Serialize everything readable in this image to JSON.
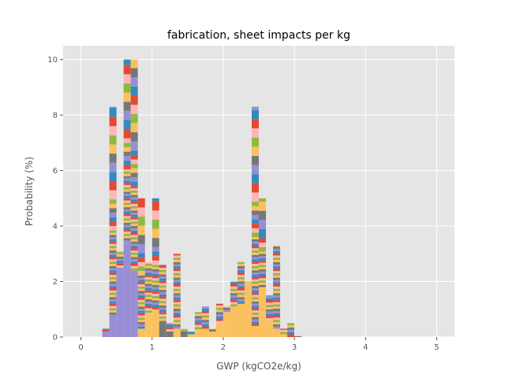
{
  "chart_data": {
    "type": "bar",
    "title": "fabrication, sheet impacts per kg",
    "xlabel": "GWP (kgCO2e/kg)",
    "ylabel": "Probability (%)",
    "xlim": [
      -0.25,
      5.25
    ],
    "ylim": [
      0,
      10.5
    ],
    "xticks": [
      0,
      1,
      2,
      3,
      4,
      5
    ],
    "yticks": [
      0,
      2,
      4,
      6,
      8,
      10
    ],
    "grid": true,
    "background": "#e5e5e5",
    "grid_color": "#ffffff",
    "palette": [
      "#e24a33",
      "#348abd",
      "#988ed5",
      "#777777",
      "#fbc15e",
      "#8eba42",
      "#ffb5b8"
    ],
    "bin_width": 0.1,
    "bins": [
      {
        "x0": 0.3,
        "total": 0.3,
        "base": 0.2,
        "base_color": "#988ed5"
      },
      {
        "x0": 0.4,
        "total": 8.3,
        "base": 0.8,
        "base_color": "#988ed5"
      },
      {
        "x0": 0.5,
        "total": 3.1,
        "base": 2.5,
        "base_color": "#988ed5"
      },
      {
        "x0": 0.6,
        "total": 10.0,
        "base": 3.4,
        "base_color": "#988ed5"
      },
      {
        "x0": 0.7,
        "total": 10.0,
        "base": 2.4,
        "base_color": "#988ed5"
      },
      {
        "x0": 0.8,
        "total": 5.0,
        "base": 0.3,
        "base_color": "#fbc15e"
      },
      {
        "x0": 0.9,
        "total": 2.7,
        "base": 0.8,
        "base_color": "#fbc15e"
      },
      {
        "x0": 1.0,
        "total": 5.0,
        "base": 1.0,
        "base_color": "#fbc15e"
      },
      {
        "x0": 1.1,
        "total": 2.6,
        "base": 0.5,
        "base_color": "#777777"
      },
      {
        "x0": 1.2,
        "total": 0.5,
        "base": 0.2,
        "base_color": "#777777"
      },
      {
        "x0": 1.3,
        "total": 3.0,
        "base": 0.3,
        "base_color": "#fbc15e"
      },
      {
        "x0": 1.4,
        "total": 0.3,
        "base": 0.2,
        "base_color": "#777777"
      },
      {
        "x0": 1.5,
        "total": 0.2,
        "base": 0.1,
        "base_color": "#fbc15e"
      },
      {
        "x0": 1.6,
        "total": 0.9,
        "base": 0.2,
        "base_color": "#fbc15e"
      },
      {
        "x0": 1.7,
        "total": 1.1,
        "base": 0.3,
        "base_color": "#fbc15e"
      },
      {
        "x0": 1.8,
        "total": 0.3,
        "base": 0.2,
        "base_color": "#fbc15e"
      },
      {
        "x0": 1.9,
        "total": 1.2,
        "base": 0.5,
        "base_color": "#fbc15e"
      },
      {
        "x0": 2.0,
        "total": 1.1,
        "base": 0.9,
        "base_color": "#fbc15e"
      },
      {
        "x0": 2.1,
        "total": 2.0,
        "base": 1.1,
        "base_color": "#fbc15e"
      },
      {
        "x0": 2.2,
        "total": 2.7,
        "base": 1.2,
        "base_color": "#fbc15e"
      },
      {
        "x0": 2.3,
        "total": 2.0,
        "base": 1.9,
        "base_color": "#fbc15e"
      },
      {
        "x0": 2.4,
        "total": 8.3,
        "base": 0.4,
        "base_color": "#fbc15e"
      },
      {
        "x0": 2.5,
        "total": 5.0,
        "base": 1.8,
        "base_color": "#fbc15e"
      },
      {
        "x0": 2.6,
        "total": 1.5,
        "base": 0.6,
        "base_color": "#fbc15e"
      },
      {
        "x0": 2.7,
        "total": 3.3,
        "base": 0.3,
        "base_color": "#fbc15e"
      },
      {
        "x0": 2.8,
        "total": 0.3,
        "base": 0.1,
        "base_color": "#fbc15e"
      },
      {
        "x0": 2.9,
        "total": 0.5,
        "base": 0.1,
        "base_color": "#e24a33"
      },
      {
        "x0": 3.0,
        "total": 0.05,
        "base": 0.03,
        "base_color": "#777777"
      }
    ]
  }
}
